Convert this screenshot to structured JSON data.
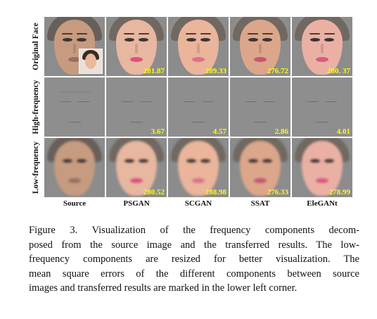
{
  "figure": {
    "row_labels": [
      "Original Face",
      "High-frequency",
      "Low-frequency"
    ],
    "column_labels": [
      "Source",
      "PSGAN",
      "SCGAN",
      "SSAT",
      "EleGANt"
    ],
    "scores": {
      "original": [
        "281.87",
        "289.33",
        "276.72",
        "280. 37"
      ],
      "high": [
        "3.67",
        "4.57",
        "2.86",
        "4.01"
      ],
      "low": [
        "280.52",
        "288.98",
        "276.33",
        "278.99"
      ]
    },
    "score_color": "#ffff00"
  },
  "caption": {
    "lines": [
      "Figure 3.   Visualization of the frequency components decom-",
      "posed from the source image and the transferred results. The low-",
      "frequency components are resized for better visualization.  The",
      "mean square errors of the different components between source",
      "images and transferred results are marked in the lower left corner."
    ]
  }
}
